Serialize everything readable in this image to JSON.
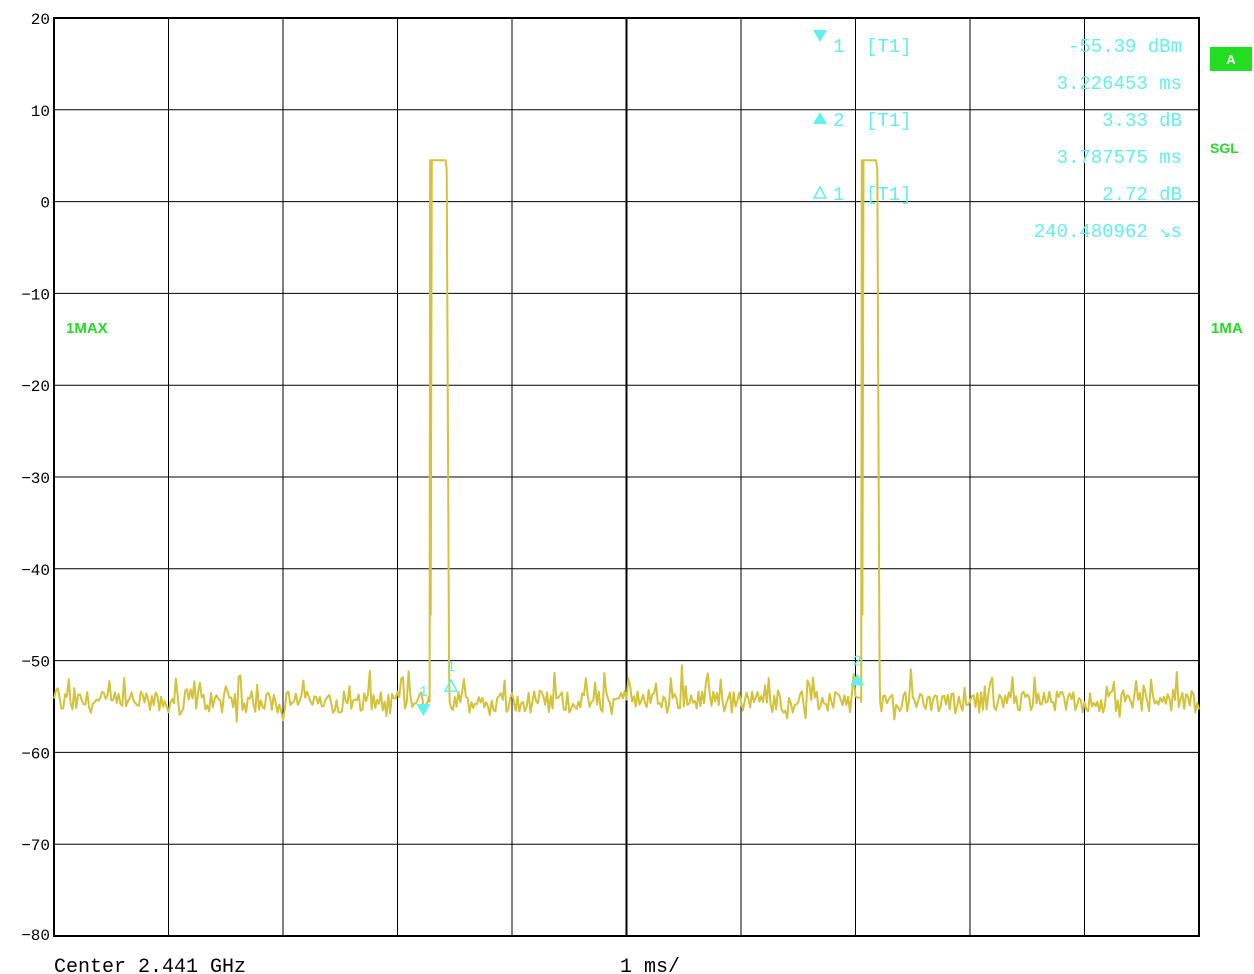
{
  "chart_data": {
    "type": "line",
    "title": "",
    "xlabel": "",
    "ylabel": "",
    "x_unit": "ms",
    "xlim": [
      0,
      10
    ],
    "ylim": [
      -80,
      20
    ],
    "y_ticks": [
      20,
      10,
      0,
      -10,
      -20,
      -30,
      -40,
      -50,
      -60,
      -70,
      -80
    ],
    "x_divisions": 10,
    "grid": true,
    "noise_floor": -54.5,
    "series": [
      {
        "name": "1MAX",
        "color": "#d4c23a",
        "pulses": [
          {
            "start": 3.28,
            "top_start": 3.3,
            "top_end": 3.42,
            "end": 3.45,
            "level": 4.5
          },
          {
            "start": 7.05,
            "top_start": 7.07,
            "top_end": 7.18,
            "end": 7.21,
            "level": 4.5
          }
        ]
      }
    ],
    "markers": [
      {
        "label": "1",
        "type": "marker",
        "x": 3.226453,
        "y": -55.39,
        "color": "#5ff0f0"
      },
      {
        "label": "2",
        "type": "delta",
        "x": 7.014028,
        "y": -52.06,
        "color": "#5ff0f0"
      },
      {
        "label": "1",
        "type": "delta-open",
        "x": 3.466934,
        "y": -52.67,
        "color": "#5ff0f0"
      }
    ],
    "marker_table": [
      {
        "icon": "filled-down-triangle",
        "id": "1",
        "trace": "[T1]",
        "value": "-55.39 dBm",
        "time": "3.226453 ms"
      },
      {
        "icon": "filled-up-triangle",
        "id": "2",
        "trace": "[T1]",
        "value": "3.33 dB",
        "time": "3.787575 ms"
      },
      {
        "icon": "open-up-triangle",
        "id": "1",
        "trace": "[T1]",
        "value": "2.72 dB",
        "time": "240.480962 ↘s"
      }
    ]
  },
  "labels": {
    "trace_left": "1MAX",
    "trace_right": "1MA",
    "badge_a": "A",
    "sgl": "SGL",
    "center": "Center 2.441 GHz",
    "span": "1 ms/"
  },
  "colors": {
    "grid": "#000000",
    "trace": "#d4c23a",
    "marker": "#5ff0f0",
    "status_green": "#22dd22",
    "badge_bg": "#22dd22"
  }
}
